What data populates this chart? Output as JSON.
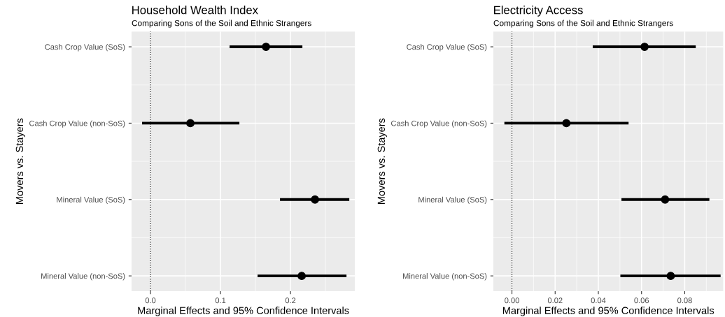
{
  "chart_data": [
    {
      "type": "scatter",
      "orientation": "horizontal",
      "title": "Household Wealth Index",
      "subtitle": "Comparing Sons of the Soil and Ethnic Strangers",
      "xlabel": "Marginal Effects and 95% Confidence Intervals",
      "ylabel": "Movers vs. Stayers",
      "categories": [
        "Cash Crop Value (SoS)",
        "Cash Crop Value (non-SoS)",
        "Mineral Value (SoS)",
        "Mineral Value (non-SoS)"
      ],
      "series": [
        {
          "color": "#000000",
          "values": [
            0.165,
            0.057,
            0.235,
            0.216
          ],
          "errors": [
            [
              0.113,
              0.217
            ],
            [
              -0.012,
              0.127
            ],
            [
              0.185,
              0.284
            ],
            [
              0.153,
              0.28
            ]
          ]
        }
      ],
      "xlim": [
        -0.027,
        0.292
      ],
      "xticks": [
        {
          "value": 0,
          "label": "0.0"
        },
        0.1,
        0.2
      ],
      "grid": true,
      "marker": "circle",
      "ref_lines": [
        {
          "axis": "x",
          "value": 0,
          "color": "#000000",
          "line_style": "dotted"
        }
      ]
    },
    {
      "type": "scatter",
      "orientation": "horizontal",
      "title": "Electricity Access",
      "subtitle": "Comparing Sons of the Soil and Ethnic Strangers",
      "xlabel": "Marginal Effects and 95% Confidence Intervals",
      "ylabel": "Movers vs. Stayers",
      "categories": [
        "Cash Crop Value (SoS)",
        "Cash Crop Value (non-SoS)",
        "Mineral Value (SoS)",
        "Mineral Value (non-SoS)"
      ],
      "series": [
        {
          "color": "#000000",
          "values": [
            0.0614,
            0.0252,
            0.0709,
            0.0735
          ],
          "errors": [
            [
              0.0374,
              0.0851
            ],
            [
              -0.0035,
              0.054
            ],
            [
              0.0507,
              0.0914
            ],
            [
              0.0502,
              0.0966
            ]
          ]
        }
      ],
      "xlim": [
        -0.0086,
        0.0978
      ],
      "xticks": [
        {
          "value": 0,
          "label": "0.00"
        },
        0.02,
        0.04,
        0.06,
        0.08
      ],
      "grid": true,
      "marker": "circle",
      "ref_lines": [
        {
          "axis": "x",
          "value": 0,
          "color": "#000000",
          "line_style": "dotted"
        }
      ]
    }
  ]
}
